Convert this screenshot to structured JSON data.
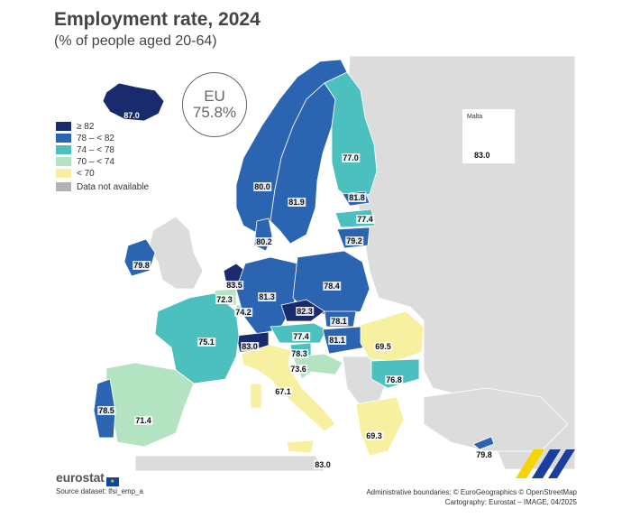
{
  "header": {
    "title": "Employment rate, 2024",
    "subtitle": "(% of people aged 20-64)"
  },
  "eu_average": {
    "label": "EU",
    "value": "75.8%"
  },
  "legend": [
    {
      "label": "≥ 82",
      "color": "#1a2b6d"
    },
    {
      "label": "78 – < 82",
      "color": "#2b64b0"
    },
    {
      "label": "74 – < 78",
      "color": "#4cbfbf"
    },
    {
      "label": "70 – < 74",
      "color": "#b3e3c0"
    },
    {
      "label": "< 70",
      "color": "#f6f0a0"
    },
    {
      "label": "Data not available",
      "color": "#b2b2b2"
    }
  ],
  "inset": {
    "title": "Malta",
    "value": "83.0"
  },
  "values": {
    "iceland": "87.0",
    "norway": "80.0",
    "sweden": "81.9",
    "finland": "77.0",
    "estonia": "81.8",
    "latvia": "77.4",
    "lithuania": "79.2",
    "denmark": "80.2",
    "ireland": "79.8",
    "netherlands": "83.5",
    "belgium": "72.3",
    "luxembourg": "74.2",
    "germany": "81.3",
    "poland": "78.4",
    "czechia": "82.3",
    "slovakia": "78.1",
    "austria": "77.4",
    "hungary": "81.1",
    "slovenia": "78.3",
    "croatia": "73.6",
    "switzerland": "83.0",
    "france": "75.1",
    "italy": "67.1",
    "spain": "71.4",
    "portugal": "78.5",
    "romania": "69.5",
    "bulgaria": "76.8",
    "greece": "69.3",
    "cyprus": "79.8",
    "malta_main": "83.0"
  },
  "footer": {
    "logo": "eurostat",
    "source": "Source dataset: lfsi_emp_a",
    "credits_1": "Administrative boundaries: © EuroGeographics © OpenStreetMap",
    "credits_2": "Cartography: Eurostat – IMAGE, 04/2025"
  }
}
